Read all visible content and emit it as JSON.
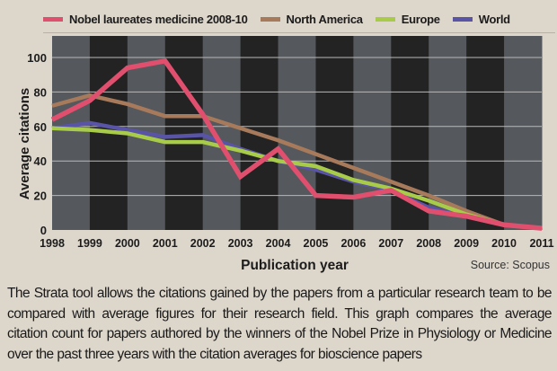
{
  "chart_data": {
    "type": "line",
    "title": "",
    "xlabel": "Publication year",
    "ylabel": "Average citations",
    "source": "Source: Scopus",
    "x": [
      1998,
      1999,
      2000,
      2001,
      2002,
      2003,
      2004,
      2005,
      2006,
      2007,
      2008,
      2009,
      2010,
      2011
    ],
    "x_tick_labels": [
      "1998",
      "1999",
      "2000",
      "2001",
      "2002",
      "2003",
      "2004",
      "2005",
      "2006",
      "2007",
      "2008",
      "2009",
      "2010",
      "2011"
    ],
    "y_ticks": [
      0,
      20,
      40,
      60,
      80,
      100
    ],
    "y_tick_labels": [
      "0",
      "20",
      "40",
      "60",
      "80",
      "100"
    ],
    "ylim": [
      0,
      110
    ],
    "xlim": [
      1998,
      2011
    ],
    "grid": "horizontal",
    "background": "alternating dark/light vertical bands per year",
    "legend_position": "top",
    "series": [
      {
        "name": "North America",
        "color": "#a87a5c",
        "values": [
          72,
          78,
          73,
          66,
          66,
          59,
          52,
          44,
          36,
          28,
          20,
          11,
          3,
          1
        ]
      },
      {
        "name": "World",
        "color": "#5a54a6",
        "values": [
          59,
          62,
          58,
          54,
          55,
          47,
          40,
          35,
          28,
          23,
          13,
          8,
          3,
          1
        ]
      },
      {
        "name": "Europe",
        "color": "#a8cc4a",
        "values": [
          59,
          58,
          56,
          51,
          51,
          46,
          40,
          37,
          29,
          24,
          17,
          9,
          3,
          1
        ]
      },
      {
        "name": "Nobel laureates medicine 2008-10",
        "color": "#e0506e",
        "values": [
          64,
          75,
          94,
          98,
          67,
          31,
          47,
          20,
          19,
          23,
          11,
          8,
          3,
          1
        ]
      }
    ],
    "legend": [
      {
        "name": "Nobel laureates medicine 2008-10",
        "color": "#e0506e"
      },
      {
        "name": "North America",
        "color": "#a87a5c"
      },
      {
        "name": "Europe",
        "color": "#a8cc4a"
      },
      {
        "name": "World",
        "color": "#5a54a6"
      }
    ]
  },
  "caption": "The Strata tool allows the citations gained by the papers from a particular research team to be compared with average figures for their research field. This graph compares the average citation count for papers authored by the winners of the Nobel Prize in Physiology or Medicine over the past three years with the citation averages for bioscience papers"
}
